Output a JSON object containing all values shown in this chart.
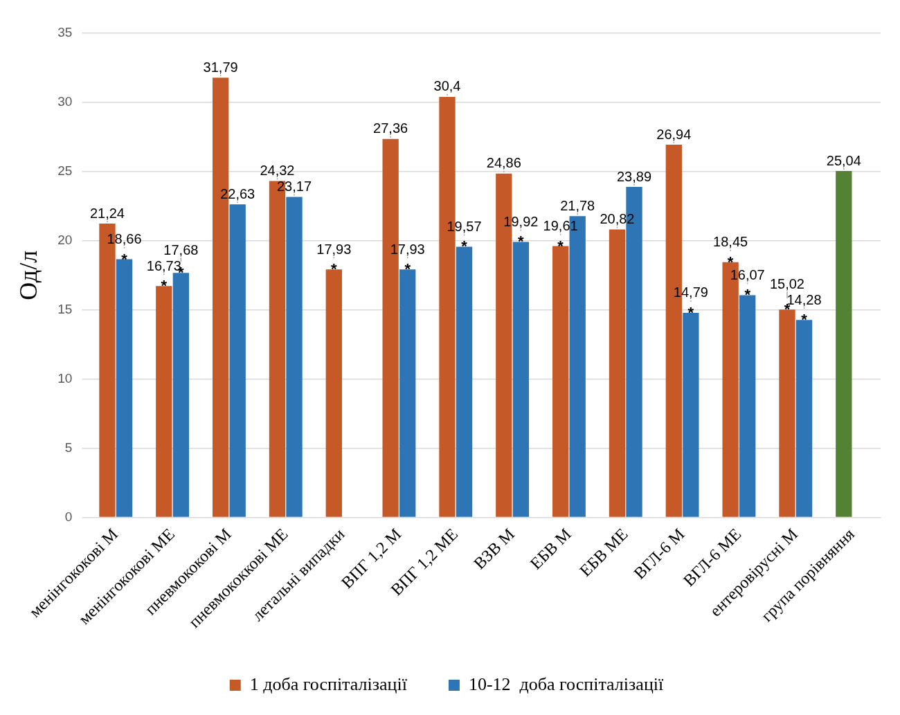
{
  "chart_data": {
    "type": "bar",
    "ylabel": "Од/л",
    "categories": [
      "менінгококові М",
      "менінгококові МЕ",
      "пневмококові М",
      "пневмококкові МЕ",
      "летальні випадки",
      "ВПГ 1,2 М",
      "ВПГ 1,2 МЕ",
      "ВЗВ М",
      "ЕБВ М",
      "ЕБВ МЕ",
      "ВГЛ-6 М",
      "ВГЛ-6 МЕ",
      "ентеровірусні М",
      "група порівняння"
    ],
    "series": [
      {
        "name": "1 доба госпіталізації",
        "color": "#c55a28",
        "colors": [
          "#c55a28",
          "#c55a28",
          "#c55a28",
          "#c55a28",
          "#c55a28",
          "#c55a28",
          "#c55a28",
          "#c55a28",
          "#c55a28",
          "#c55a28",
          "#c55a28",
          "#c55a28",
          "#c55a28",
          "#548235"
        ],
        "values": [
          21.24,
          16.73,
          31.79,
          24.32,
          17.93,
          27.36,
          30.4,
          24.86,
          19.61,
          20.82,
          26.94,
          18.45,
          15.02,
          25.04
        ],
        "value_labels": [
          "21,24",
          "16,73",
          "31,79",
          "24,32",
          "17,93",
          "27,36",
          "30,4",
          "24,86",
          "19,61",
          "20,82",
          "26,94",
          "18,45",
          "15,02",
          "25,04"
        ]
      },
      {
        "name": "10-12  доба госпіталізації",
        "color": "#2e75b6",
        "values": [
          18.66,
          17.68,
          22.63,
          23.17,
          null,
          17.93,
          19.57,
          19.92,
          21.78,
          23.89,
          14.79,
          16.07,
          14.28,
          null
        ],
        "value_labels": [
          "18,66",
          "17,68",
          "22,63",
          "23,17",
          null,
          "17,93",
          "19,57",
          "19,92",
          "21,78",
          "23,89",
          "14,79",
          "16,07",
          "14,28",
          null
        ]
      }
    ],
    "ylim": [
      0,
      35
    ],
    "yticks": [
      0,
      5,
      10,
      15,
      20,
      25,
      30,
      35
    ],
    "grid": "y",
    "legend": "bottom",
    "annotations": [
      {
        "text": "*",
        "x": "менінгококові М",
        "y": 18.66
      },
      {
        "text": "*",
        "x": "менінгококові МЕ",
        "y": 16.73
      },
      {
        "text": "*",
        "x": "менінгококові МЕ",
        "y": 17.68
      },
      {
        "text": "*",
        "x": "летальні випадки",
        "y": 17.93
      },
      {
        "text": "*",
        "x": "ВПГ 1,2 М",
        "y": 17.93
      },
      {
        "text": "*",
        "x": "ВПГ 1,2 МЕ",
        "y": 19.57
      },
      {
        "text": "*",
        "x": "ВЗВ М",
        "y": 19.92
      },
      {
        "text": "*",
        "x": "ЕБВ М",
        "y": 19.61
      },
      {
        "text": "*",
        "x": "ВГЛ-6 М",
        "y": 14.79
      },
      {
        "text": "*",
        "x": "ВГЛ-6 МЕ",
        "y": 18.45
      },
      {
        "text": "*",
        "x": "ВГЛ-6 МЕ",
        "y": 16.07
      },
      {
        "text": "*",
        "x": "ентеровірусні М",
        "y": 15.02
      },
      {
        "text": "*",
        "x": "ентеровірусні М",
        "y": 14.28
      }
    ]
  }
}
